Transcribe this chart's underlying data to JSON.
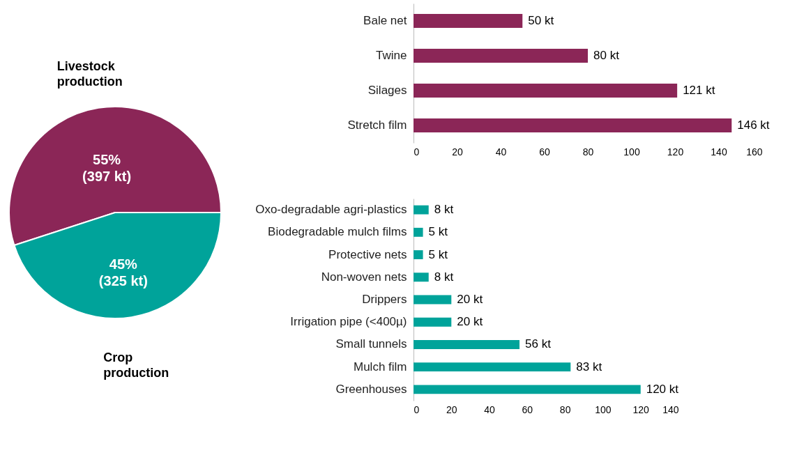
{
  "chart_data": [
    {
      "type": "pie",
      "categories": [
        "Livestock production",
        "Crop production"
      ],
      "values": [
        55,
        45
      ],
      "colors": [
        "#8b2657",
        "#00a39a"
      ],
      "value_labels": [
        "55%\n(397 kt)",
        "45%\n(325 kt)"
      ],
      "legend": false
    },
    {
      "type": "bar",
      "orientation": "horizontal",
      "categories": [
        "Bale net",
        "Twine",
        "Silages",
        "Stretch film"
      ],
      "values": [
        50,
        80,
        121,
        146
      ],
      "color": "#8b2657",
      "value_labels": [
        "50 kt",
        "80 kt",
        "121 kt",
        "146 kt"
      ],
      "xlim": [
        0,
        160
      ],
      "xticks": [
        0,
        20,
        40,
        60,
        80,
        100,
        120,
        140,
        160
      ],
      "grid": false
    },
    {
      "type": "bar",
      "orientation": "horizontal",
      "categories": [
        "Oxo-degradable agri-plastics",
        "Biodegradable mulch films",
        "Protective nets",
        "Non-woven nets",
        "Drippers",
        "Irrigation pipe (<400µ)",
        "Small tunnels",
        "Mulch film",
        "Greenhouses"
      ],
      "values": [
        8,
        5,
        5,
        8,
        20,
        20,
        56,
        83,
        120
      ],
      "color": "#00a39a",
      "value_labels": [
        "8 kt",
        "5 kt",
        "5 kt",
        "8 kt",
        "20 kt",
        "20 kt",
        "56 kt",
        "83 kt",
        "120 kt"
      ],
      "xlim": [
        0,
        140
      ],
      "xticks": [
        0,
        20,
        40,
        60,
        80,
        100,
        120,
        140
      ],
      "grid": false
    }
  ]
}
